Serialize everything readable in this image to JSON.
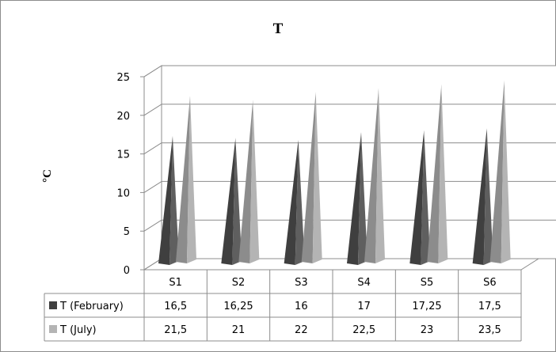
{
  "chart_data": {
    "type": "bar",
    "title": "T",
    "ylabel": "°C",
    "xlabel": "",
    "categories": [
      "S1",
      "S2",
      "S3",
      "S4",
      "S5",
      "S6"
    ],
    "ylim": [
      0,
      25
    ],
    "yticks": [
      "0",
      "5",
      "10",
      "15",
      "20",
      "25"
    ],
    "grid": true,
    "legend_placement": "data-table-left",
    "series": [
      {
        "name": "T (February)",
        "values": [
          16.5,
          16.25,
          16,
          17,
          17.25,
          17.5
        ],
        "labels": [
          "16,5",
          "16,25",
          "16",
          "17",
          "17,25",
          "17,5"
        ],
        "color": "#5f5f5f"
      },
      {
        "name": "T (July)",
        "values": [
          21.5,
          21,
          22,
          22.5,
          23,
          23.5
        ],
        "labels": [
          "21,5",
          "21",
          "22",
          "22,5",
          "23",
          "23,5"
        ],
        "color": "#b4b4b4"
      }
    ]
  }
}
